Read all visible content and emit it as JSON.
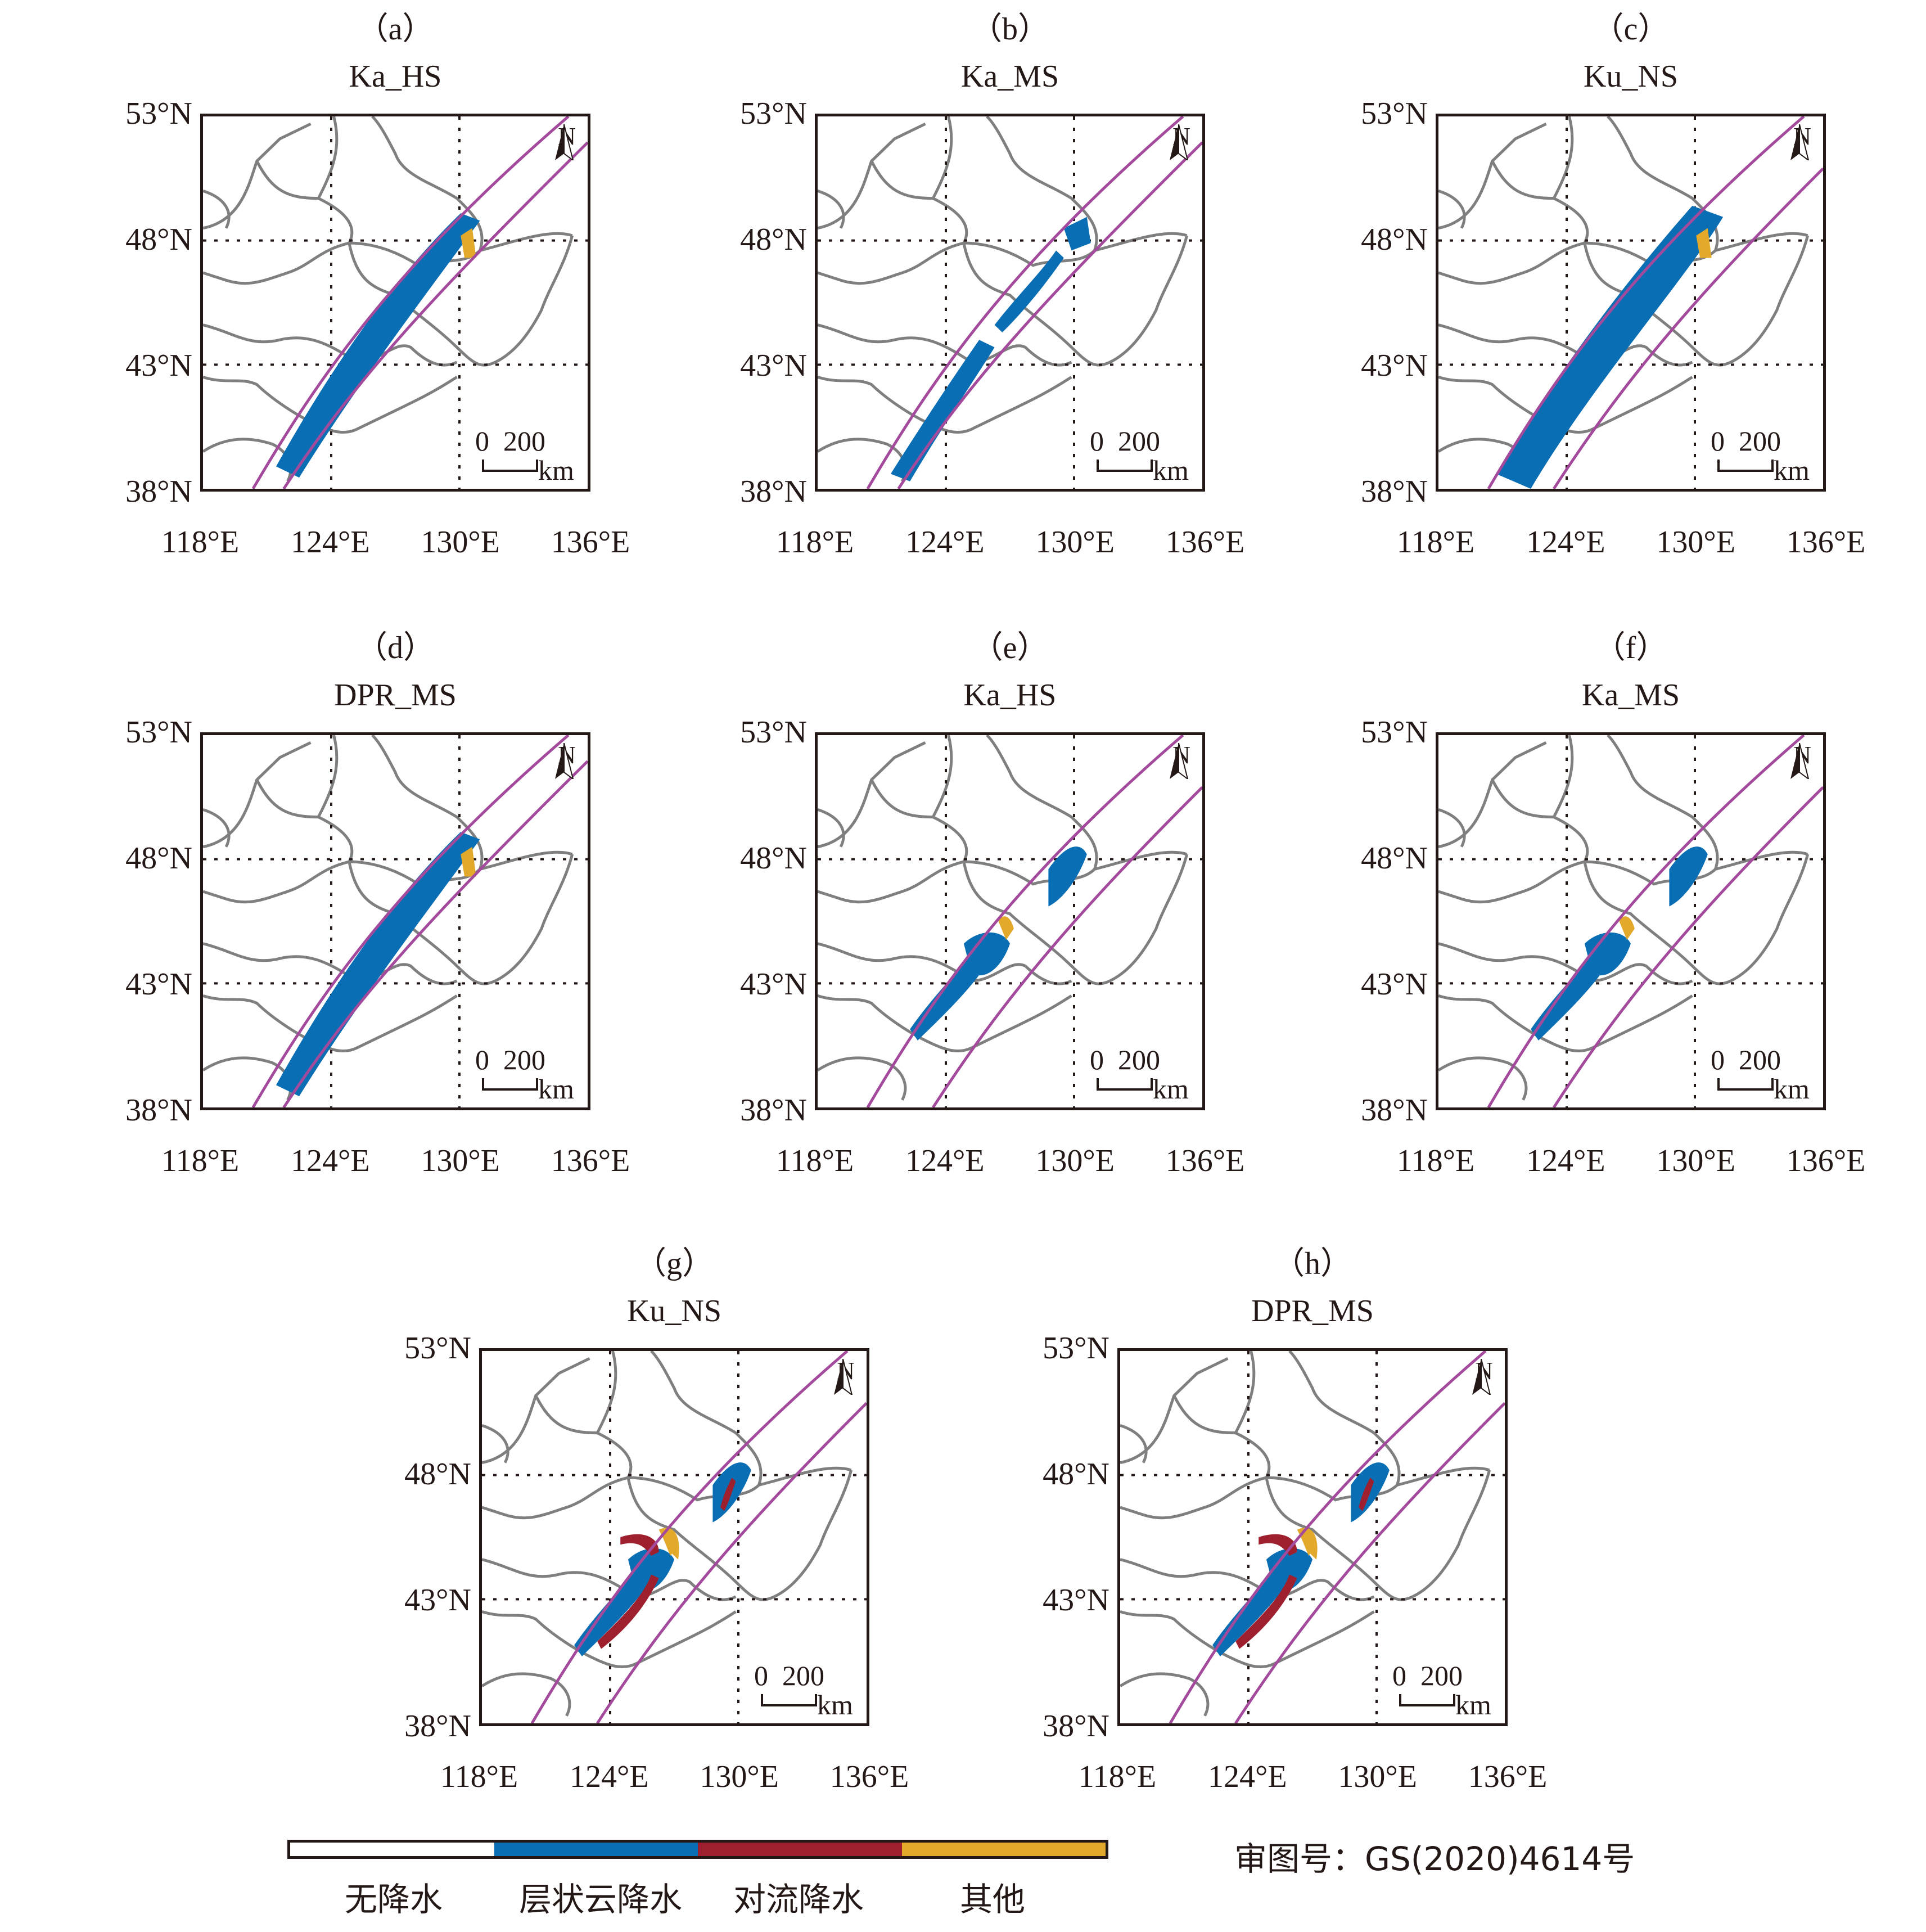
{
  "figure": {
    "lat_ticks": [
      "53°N",
      "48°N",
      "43°N",
      "38°N"
    ],
    "lon_ticks": [
      "118°E",
      "124°E",
      "130°E",
      "136°E"
    ],
    "lat_range": [
      38,
      53
    ],
    "lon_range": [
      118,
      136
    ],
    "north_label": "N",
    "scale_numbers": "0  200",
    "scale_unit": "km",
    "colors": {
      "boundary": "#7f7f7f",
      "swath": "#a34a9c",
      "no_rain": "#ffffff",
      "stratiform": "#0a6eb4",
      "convective": "#9e1f2e",
      "other": "#e3a92a"
    }
  },
  "panels": [
    {
      "id": "a",
      "label": "（a）",
      "title": "Ka_HS",
      "swath": "narrow",
      "coverage": "full"
    },
    {
      "id": "b",
      "label": "（b）",
      "title": "Ka_MS",
      "swath": "narrow",
      "coverage": "patchy"
    },
    {
      "id": "c",
      "label": "（c）",
      "title": "Ku_NS",
      "swath": "wide",
      "coverage": "full"
    },
    {
      "id": "d",
      "label": "（d）",
      "title": "DPR_MS",
      "swath": "narrow",
      "coverage": "full"
    },
    {
      "id": "e",
      "label": "（e）",
      "title": "Ka_HS",
      "swath": "wide",
      "coverage": "cells"
    },
    {
      "id": "f",
      "label": "（f）",
      "title": "Ka_MS",
      "swath": "wide",
      "coverage": "cells"
    },
    {
      "id": "g",
      "label": "（g）",
      "title": "Ku_NS",
      "swath": "wide",
      "coverage": "cells-convective"
    },
    {
      "id": "h",
      "label": "（h）",
      "title": "DPR_MS",
      "swath": "wide",
      "coverage": "cells-convective"
    }
  ],
  "legend": {
    "items": [
      {
        "label": "无降水",
        "color": "#ffffff"
      },
      {
        "label": "层状云降水",
        "color": "#0a6eb4"
      },
      {
        "label": "对流降水",
        "color": "#9e1f2e"
      },
      {
        "label": "其他",
        "color": "#e3a92a"
      }
    ]
  },
  "review_number": "审图号：GS(2020)4614号"
}
